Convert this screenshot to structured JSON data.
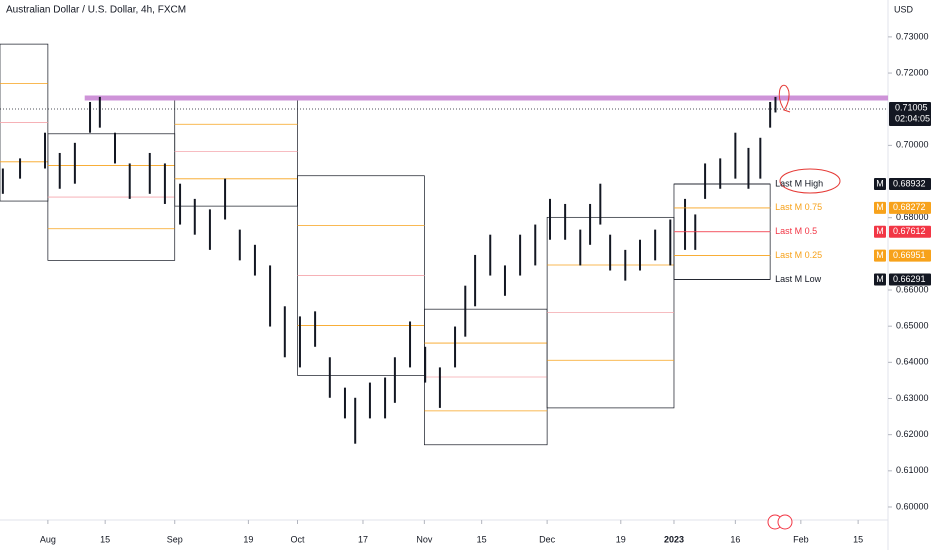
{
  "chart_data": {
    "type": "hilo",
    "title": "Australian Dollar / U.S. Dollar, 4h, FXCM",
    "currency": "USD",
    "xlim": [
      -11.7,
      205.3
    ],
    "ylim": [
      0.5964,
      0.7402
    ],
    "xticks": [
      {
        "value": 0,
        "label": "Aug"
      },
      {
        "value": 14,
        "label": "15"
      },
      {
        "value": 31,
        "label": "Sep"
      },
      {
        "value": 49,
        "label": "19"
      },
      {
        "value": 61,
        "label": "Oct"
      },
      {
        "value": 77,
        "label": "17"
      },
      {
        "value": 92,
        "label": "Nov"
      },
      {
        "value": 106,
        "label": "15"
      },
      {
        "value": 122,
        "label": "Dec"
      },
      {
        "value": 140,
        "label": "19"
      },
      {
        "value": 153,
        "label": "2023"
      },
      {
        "value": 168,
        "label": "16"
      },
      {
        "value": 184,
        "label": "Feb"
      },
      {
        "value": 198,
        "label": "15"
      }
    ],
    "yticks": [
      {
        "value": 0.73,
        "label": "0.73000"
      },
      {
        "value": 0.72,
        "label": "0.72000"
      },
      {
        "value": 0.7,
        "label": "0.70000"
      },
      {
        "value": 0.68,
        "label": "0.68000"
      },
      {
        "value": 0.66,
        "label": "0.66000"
      },
      {
        "value": 0.65,
        "label": "0.65000"
      },
      {
        "value": 0.64,
        "label": "0.64000"
      },
      {
        "value": 0.63,
        "label": "0.63000"
      },
      {
        "value": 0.62,
        "label": "0.62000"
      },
      {
        "value": 0.61,
        "label": "0.61000"
      },
      {
        "value": 0.6,
        "label": "0.60000"
      }
    ],
    "color": "#131722",
    "x": [
      -11,
      -6.8,
      -0.7,
      2.9,
      6.6,
      10.3,
      12.7,
      16.4,
      20.0,
      24.9,
      28.6,
      32.3,
      35.9,
      39.6,
      43.3,
      46.9,
      50.6,
      54.3,
      57.9,
      61.6,
      65.3,
      68.9,
      72.6,
      75.1,
      78.7,
      82.4,
      84.8,
      88.5,
      92.2,
      95.8,
      99.5,
      102.0,
      104.4,
      108.1,
      111.7,
      115.4,
      119.1,
      122.7,
      126.4,
      130.1,
      132.5,
      135.0,
      137.4,
      141.1,
      144.7,
      148.4,
      152.1,
      155.7,
      158.2,
      160.6,
      164.3,
      168.0,
      171.2,
      174.1,
      176.5,
      177.8
    ],
    "high": [
      0.6936,
      0.6964,
      0.7035,
      0.6979,
      0.7007,
      0.712,
      0.7134,
      0.7035,
      0.695,
      0.6979,
      0.695,
      0.6894,
      0.6852,
      0.6823,
      0.6908,
      0.6767,
      0.6725,
      0.6668,
      0.6555,
      0.6527,
      0.6541,
      0.6414,
      0.633,
      0.6302,
      0.6344,
      0.6358,
      0.6414,
      0.6513,
      0.6443,
      0.6386,
      0.6499,
      0.6612,
      0.6697,
      0.6753,
      0.6668,
      0.6753,
      0.6781,
      0.6852,
      0.6838,
      0.6767,
      0.6838,
      0.6894,
      0.6753,
      0.6711,
      0.6739,
      0.6767,
      0.6795,
      0.6852,
      0.6809,
      0.695,
      0.6964,
      0.7035,
      0.6993,
      0.7021,
      0.712,
      0.7134
    ],
    "low": [
      0.6866,
      0.6908,
      0.6936,
      0.688,
      0.6894,
      0.7035,
      0.7049,
      0.695,
      0.6852,
      0.6866,
      0.6838,
      0.6781,
      0.6753,
      0.6711,
      0.6795,
      0.6682,
      0.664,
      0.6499,
      0.6414,
      0.6386,
      0.6443,
      0.6302,
      0.6245,
      0.6175,
      0.6245,
      0.6245,
      0.6288,
      0.6386,
      0.6344,
      0.6274,
      0.6386,
      0.6471,
      0.6555,
      0.664,
      0.6584,
      0.664,
      0.6668,
      0.6739,
      0.6739,
      0.6668,
      0.6725,
      0.6781,
      0.6654,
      0.6626,
      0.6654,
      0.6682,
      0.6668,
      0.6711,
      0.6711,
      0.6852,
      0.688,
      0.6908,
      0.688,
      0.6908,
      0.7049,
      0.7091
    ],
    "boxes": [
      {
        "start": -11.7,
        "end": 0,
        "high": 0.728,
        "low": 0.6846
      },
      {
        "start": 0,
        "end": 31,
        "high": 0.7032,
        "low": 0.6682
      },
      {
        "start": 31,
        "end": 61,
        "high": 0.7134,
        "low": 0.6832
      },
      {
        "start": 61,
        "end": 92,
        "high": 0.6916,
        "low": 0.6364
      },
      {
        "start": 92,
        "end": 122,
        "high": 0.6547,
        "low": 0.6172
      },
      {
        "start": 122,
        "end": 153,
        "high": 0.6801,
        "low": 0.6274
      },
      {
        "start": 153,
        "end": 176.5,
        "high": 0.68932,
        "low": 0.66291
      }
    ],
    "levels": [
      {
        "name": "Last M High",
        "value": 0.68932,
        "color": "#131722",
        "tag": "M"
      },
      {
        "name": "Last M 0.75",
        "value": 0.68272,
        "color": "#f7a21b",
        "tag": "M"
      },
      {
        "name": "Last M 0.5",
        "value": 0.67612,
        "color": "#f23645",
        "tag": "M"
      },
      {
        "name": "Last M 0.25",
        "value": 0.66951,
        "color": "#f7a21b",
        "tag": "M"
      },
      {
        "name": "Last M Low",
        "value": 0.66291,
        "color": "#131722",
        "tag": "M"
      }
    ],
    "resistance": {
      "value": 0.7131,
      "start": 9,
      "color": "#ce93d8"
    },
    "last_price": {
      "value": 0.71005,
      "countdown": "02:04:05"
    }
  }
}
